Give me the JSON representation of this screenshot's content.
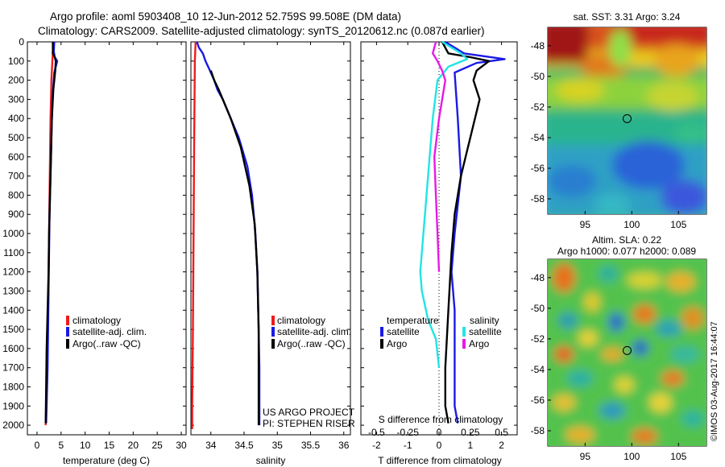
{
  "header": {
    "title_line1": "Argo profile: aoml 5903408_10 12-Jun-2012 52.759S 99.508E (DM data)",
    "title_line2": "Climatology: CARS2009. Satellite-adjusted climatology: synTS_20120612.nc (0.087d earlier)"
  },
  "credit": {
    "project": "US ARGO PROJECT",
    "pi": "PI: STEPHEN RISER",
    "imos": "©IMOS 03-Aug-2017 16:44:07"
  },
  "colors": {
    "climatology": "#ee1c1c",
    "satellite": "#1a1ae6",
    "argo": "#000000",
    "salinity_satellite": "#22e4e4",
    "salinity_argo": "#e61ae6"
  },
  "chart_data": [
    {
      "type": "line",
      "id": "temperature",
      "xlabel": "temperature (deg C)",
      "ylabel": "",
      "xlim": [
        -2,
        31
      ],
      "ylim": [
        2050,
        0
      ],
      "xticks": [
        0,
        5,
        10,
        15,
        20,
        25,
        30
      ],
      "yticks": [
        0,
        100,
        200,
        300,
        400,
        500,
        600,
        700,
        800,
        900,
        1000,
        1100,
        1200,
        1300,
        1400,
        1500,
        1600,
        1700,
        1800,
        1900,
        2000
      ],
      "legend": [
        "climatology",
        "satellite-adj. clim.",
        "Argo(..raw -QC)"
      ],
      "series": [
        {
          "name": "climatology",
          "color": "#ee1c1c",
          "x": [
            3.4,
            3.2,
            3.0,
            2.9,
            2.8,
            2.7,
            2.6,
            2.55,
            2.5,
            2.4,
            2.3,
            2.2,
            2.1,
            2.0,
            1.9,
            1.8
          ],
          "y": [
            0,
            100,
            200,
            300,
            400,
            600,
            800,
            900,
            1000,
            1200,
            1400,
            1500,
            1600,
            1800,
            1900,
            2000
          ]
        },
        {
          "name": "satellite-adj. clim.",
          "color": "#1a1ae6",
          "x": [
            3.6,
            3.5,
            3.7,
            4.2,
            3.6,
            3.2,
            3.0,
            2.8,
            2.6,
            2.5,
            2.4,
            2.3,
            2.2,
            2.0,
            1.9
          ],
          "y": [
            0,
            50,
            80,
            100,
            160,
            300,
            500,
            700,
            900,
            1100,
            1300,
            1500,
            1700,
            1900,
            1990
          ]
        },
        {
          "name": "Argo(..raw -QC)",
          "color": "#000000",
          "x": [
            3.3,
            3.3,
            3.7,
            3.9,
            3.8,
            3.4,
            3.1,
            2.9,
            2.7,
            2.5,
            2.4,
            2.2,
            2.0,
            1.9,
            1.8
          ],
          "y": [
            0,
            60,
            80,
            100,
            150,
            250,
            400,
            600,
            800,
            1000,
            1200,
            1400,
            1600,
            1800,
            1990
          ]
        }
      ]
    },
    {
      "type": "line",
      "id": "salinity",
      "xlabel": "salinity",
      "ylabel": "",
      "xlim": [
        33.7,
        36.1
      ],
      "ylim": [
        2050,
        0
      ],
      "xticks": [
        34,
        34.5,
        35,
        35.5,
        36
      ],
      "legend": [
        "climatology",
        "satellite-adj. clim.",
        "Argo(..raw -QC)"
      ],
      "series": [
        {
          "name": "climatology",
          "color": "#ee1c1c",
          "x": [
            33.77,
            33.76,
            33.75,
            33.74,
            33.73,
            33.72,
            33.72
          ],
          "y": [
            0,
            100,
            500,
            1000,
            1500,
            1900,
            2020
          ]
        },
        {
          "name": "satellite-adj. clim.",
          "color": "#1a1ae6",
          "x": [
            33.79,
            33.82,
            33.88,
            33.92,
            33.96,
            34.0,
            34.05,
            34.1,
            34.18,
            34.3,
            34.42,
            34.55,
            34.62,
            34.67,
            34.7,
            34.71,
            34.72,
            34.73,
            34.73,
            34.73
          ],
          "y": [
            0,
            30,
            60,
            100,
            130,
            160,
            200,
            250,
            300,
            400,
            500,
            650,
            800,
            1000,
            1200,
            1350,
            1500,
            1700,
            1900,
            2000
          ]
        },
        {
          "name": "Argo(..raw -QC)",
          "color": "#000000",
          "x": [
            34.0,
            34.05,
            34.12,
            34.3,
            34.45,
            34.58,
            34.66,
            34.7,
            34.72,
            34.72
          ],
          "y": [
            150,
            200,
            250,
            400,
            550,
            750,
            950,
            1200,
            1500,
            2000
          ]
        }
      ]
    },
    {
      "type": "line",
      "id": "difference",
      "xlabel": "T difference from climatology",
      "xlabel_top": "S difference from climatology",
      "ylim": [
        2050,
        0
      ],
      "xlim": [
        -2.5,
        2.5
      ],
      "xticks": [
        -2,
        -1,
        0,
        1,
        2
      ],
      "xlim_top": [
        -0.625,
        0.625
      ],
      "xticks_top": [
        "-0.5",
        "-0.25",
        "0",
        "0.25",
        "0.5"
      ],
      "legend_headers": [
        "temperature",
        "salinity"
      ],
      "legend": [
        "satellite",
        "Argo",
        "satellite",
        "Argo"
      ],
      "series": [
        {
          "name": "satellite",
          "color": "#1a1ae6",
          "x": [
            0.2,
            0.6,
            0.8,
            2.1,
            1.2,
            0.5,
            0.6,
            0.7,
            0.5,
            0.4,
            0.5,
            0.5,
            0.5,
            0.5,
            0.6
          ],
          "y": [
            0,
            40,
            60,
            90,
            110,
            160,
            400,
            700,
            1000,
            1200,
            1400,
            1600,
            1800,
            1900,
            1990
          ]
        },
        {
          "name": "Argo",
          "color": "#000000",
          "x": [
            0.1,
            0.3,
            1.0,
            1.6,
            1.2,
            1.1,
            1.3,
            1.0,
            0.7,
            0.5,
            0.4,
            0.3,
            0.2,
            0.2,
            0.3
          ],
          "y": [
            0,
            60,
            80,
            100,
            150,
            200,
            300,
            500,
            700,
            900,
            1100,
            1400,
            1700,
            1900,
            1990
          ]
        },
        {
          "name": "satellite",
          "color": "#22e4e4",
          "x": [
            0.1,
            0.7,
            0.9,
            0.3,
            -0.05,
            -0.2,
            -0.35,
            -0.5,
            -0.6,
            -0.55,
            -0.35,
            -0.1,
            0.0
          ],
          "y": [
            0,
            60,
            90,
            130,
            200,
            400,
            700,
            1000,
            1200,
            1300,
            1450,
            1550,
            1700
          ]
        },
        {
          "name": "Argo",
          "color": "#e61ae6",
          "x": [
            -0.1,
            -0.2,
            -0.05,
            0.1,
            0.2,
            0.0,
            -0.15,
            -0.1,
            -0.05,
            0.0
          ],
          "y": [
            0,
            60,
            100,
            150,
            200,
            400,
            600,
            800,
            1000,
            1200
          ]
        }
      ]
    },
    {
      "type": "heatmap",
      "id": "sst-map",
      "title": "sat. SST: 3.31  Argo: 3.24",
      "xticks": [
        95,
        100,
        105
      ],
      "yticks": [
        -48,
        -50,
        -52,
        -54,
        -56,
        -58
      ],
      "xlim": [
        91,
        108
      ],
      "ylim": [
        -59,
        -46.8
      ],
      "marker": {
        "lon": 99.5,
        "lat": -52.76
      }
    },
    {
      "type": "heatmap",
      "id": "sla-map",
      "title": "Altim. SLA: 0.22",
      "title2": "Argo h1000: 0.077 h2000: 0.089",
      "xticks": [
        95,
        100,
        105
      ],
      "yticks": [
        -48,
        -50,
        -52,
        -54,
        -56,
        -58
      ],
      "xlim": [
        91,
        108
      ],
      "ylim": [
        -59,
        -46.8
      ],
      "marker": {
        "lon": 99.5,
        "lat": -52.76
      }
    }
  ]
}
